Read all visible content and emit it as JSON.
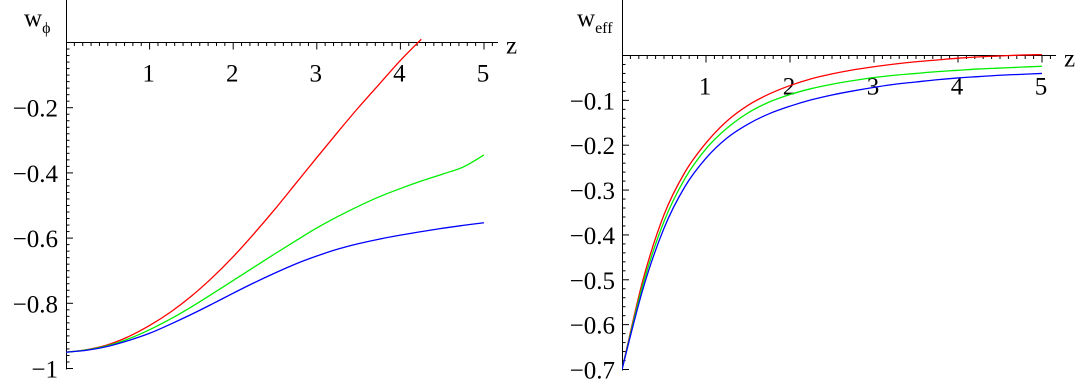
{
  "chart_data": [
    {
      "type": "line",
      "title": "",
      "xlabel": "z",
      "ylabel": "w",
      "ylabel_sub": "ϕ",
      "xlim": [
        0,
        5
      ],
      "ylim": [
        -1,
        0
      ],
      "x_ticks": [
        "1",
        "2",
        "3",
        "4",
        "5"
      ],
      "x_tick_values": [
        1,
        2,
        3,
        4,
        5
      ],
      "y_ticks": [
        "−0.2",
        "−0.4",
        "−0.6",
        "−0.8",
        "−1"
      ],
      "y_tick_values": [
        -0.2,
        -0.4,
        -0.6,
        -0.8,
        -1
      ],
      "grid": false,
      "legend": "none",
      "x": [
        0,
        0.25,
        0.5,
        0.75,
        1,
        1.25,
        1.5,
        1.75,
        2,
        2.25,
        2.5,
        2.75,
        3,
        3.25,
        3.5,
        3.75,
        4,
        4.25,
        4.5,
        4.75,
        5
      ],
      "series": [
        {
          "color": "#ff0000",
          "values": [
            -0.95,
            -0.942,
            -0.927,
            -0.902,
            -0.868,
            -0.827,
            -0.778,
            -0.721,
            -0.657,
            -0.586,
            -0.511,
            -0.432,
            -0.353,
            -0.275,
            -0.199,
            -0.127,
            -0.055,
            0.01,
            null,
            null,
            null
          ]
        },
        {
          "color": "#00ee00",
          "values": [
            -0.95,
            -0.943,
            -0.93,
            -0.909,
            -0.881,
            -0.848,
            -0.811,
            -0.771,
            -0.73,
            -0.689,
            -0.648,
            -0.608,
            -0.569,
            -0.534,
            -0.502,
            -0.473,
            -0.448,
            -0.425,
            -0.404,
            -0.382,
            -0.345
          ]
        },
        {
          "color": "#0000ff",
          "values": [
            -0.95,
            -0.944,
            -0.932,
            -0.914,
            -0.892,
            -0.864,
            -0.834,
            -0.802,
            -0.769,
            -0.737,
            -0.707,
            -0.679,
            -0.655,
            -0.634,
            -0.617,
            -0.603,
            -0.591,
            -0.58,
            -0.57,
            -0.561,
            -0.553
          ]
        }
      ]
    },
    {
      "type": "line",
      "title": "",
      "xlabel": "z",
      "ylabel": "w",
      "ylabel_sub": "eff",
      "xlim": [
        0,
        5
      ],
      "ylim": [
        -0.7,
        0
      ],
      "x_ticks": [
        "1",
        "2",
        "3",
        "4",
        "5"
      ],
      "x_tick_values": [
        1,
        2,
        3,
        4,
        5
      ],
      "y_ticks": [
        "−0.1",
        "−0.2",
        "−0.3",
        "−0.4",
        "−0.5",
        "−0.6",
        "−0.7"
      ],
      "y_tick_values": [
        -0.1,
        -0.2,
        -0.3,
        -0.4,
        -0.5,
        -0.6,
        -0.7
      ],
      "grid": false,
      "legend": "none",
      "x": [
        0,
        0.25,
        0.5,
        0.75,
        1,
        1.25,
        1.5,
        1.75,
        2,
        2.25,
        2.5,
        2.75,
        3,
        3.25,
        3.5,
        3.75,
        4,
        4.25,
        4.5,
        4.75,
        5
      ],
      "series": [
        {
          "color": "#ff0000",
          "values": [
            -0.7,
            -0.5,
            -0.355,
            -0.26,
            -0.195,
            -0.146,
            -0.111,
            -0.086,
            -0.067,
            -0.052,
            -0.041,
            -0.032,
            -0.025,
            -0.019,
            -0.014,
            -0.01,
            -0.006,
            -0.003,
            -0.001,
            0.001,
            0.002
          ]
        },
        {
          "color": "#00ee00",
          "values": [
            -0.7,
            -0.51,
            -0.37,
            -0.274,
            -0.208,
            -0.162,
            -0.128,
            -0.104,
            -0.087,
            -0.074,
            -0.064,
            -0.056,
            -0.049,
            -0.044,
            -0.04,
            -0.036,
            -0.033,
            -0.03,
            -0.028,
            -0.026,
            -0.024
          ]
        },
        {
          "color": "#0000ff",
          "values": [
            -0.7,
            -0.52,
            -0.385,
            -0.292,
            -0.229,
            -0.184,
            -0.153,
            -0.13,
            -0.113,
            -0.099,
            -0.088,
            -0.079,
            -0.071,
            -0.064,
            -0.059,
            -0.054,
            -0.05,
            -0.047,
            -0.044,
            -0.042,
            -0.04
          ]
        }
      ]
    }
  ]
}
